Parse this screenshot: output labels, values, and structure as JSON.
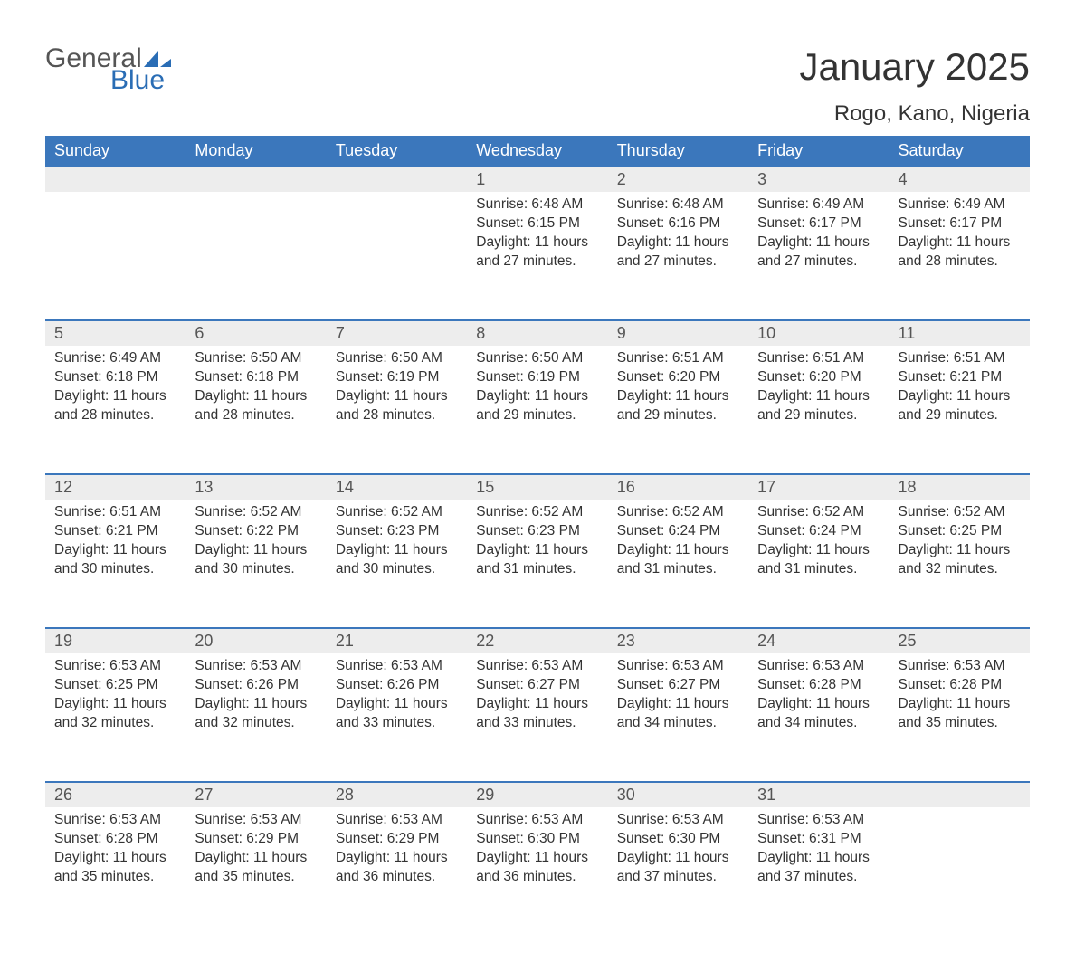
{
  "branding": {
    "logo_word1": "General",
    "logo_word2": "Blue",
    "brand_primary_color": "#2a6db5",
    "brand_text_color": "#555555"
  },
  "header": {
    "month_title": "January 2025",
    "location": "Rogo, Kano, Nigeria"
  },
  "calendar": {
    "header_bg_color": "#3b77bc",
    "header_text_color": "#ffffff",
    "daynum_bg_color": "#ededed",
    "daynum_text_color": "#555555",
    "row_divider_color": "#3b77bc",
    "body_text_color": "#333333",
    "background_color": "#ffffff",
    "font_size_header_pt": 14,
    "font_size_daynum_pt": 14,
    "font_size_body_pt": 12,
    "columns": [
      "Sunday",
      "Monday",
      "Tuesday",
      "Wednesday",
      "Thursday",
      "Friday",
      "Saturday"
    ],
    "weeks": [
      {
        "days": [
          null,
          null,
          null,
          {
            "n": "1",
            "sunrise": "6:48 AM",
            "sunset": "6:15 PM",
            "daylight": "11 hours and 27 minutes."
          },
          {
            "n": "2",
            "sunrise": "6:48 AM",
            "sunset": "6:16 PM",
            "daylight": "11 hours and 27 minutes."
          },
          {
            "n": "3",
            "sunrise": "6:49 AM",
            "sunset": "6:17 PM",
            "daylight": "11 hours and 27 minutes."
          },
          {
            "n": "4",
            "sunrise": "6:49 AM",
            "sunset": "6:17 PM",
            "daylight": "11 hours and 28 minutes."
          }
        ]
      },
      {
        "days": [
          {
            "n": "5",
            "sunrise": "6:49 AM",
            "sunset": "6:18 PM",
            "daylight": "11 hours and 28 minutes."
          },
          {
            "n": "6",
            "sunrise": "6:50 AM",
            "sunset": "6:18 PM",
            "daylight": "11 hours and 28 minutes."
          },
          {
            "n": "7",
            "sunrise": "6:50 AM",
            "sunset": "6:19 PM",
            "daylight": "11 hours and 28 minutes."
          },
          {
            "n": "8",
            "sunrise": "6:50 AM",
            "sunset": "6:19 PM",
            "daylight": "11 hours and 29 minutes."
          },
          {
            "n": "9",
            "sunrise": "6:51 AM",
            "sunset": "6:20 PM",
            "daylight": "11 hours and 29 minutes."
          },
          {
            "n": "10",
            "sunrise": "6:51 AM",
            "sunset": "6:20 PM",
            "daylight": "11 hours and 29 minutes."
          },
          {
            "n": "11",
            "sunrise": "6:51 AM",
            "sunset": "6:21 PM",
            "daylight": "11 hours and 29 minutes."
          }
        ]
      },
      {
        "days": [
          {
            "n": "12",
            "sunrise": "6:51 AM",
            "sunset": "6:21 PM",
            "daylight": "11 hours and 30 minutes."
          },
          {
            "n": "13",
            "sunrise": "6:52 AM",
            "sunset": "6:22 PM",
            "daylight": "11 hours and 30 minutes."
          },
          {
            "n": "14",
            "sunrise": "6:52 AM",
            "sunset": "6:23 PM",
            "daylight": "11 hours and 30 minutes."
          },
          {
            "n": "15",
            "sunrise": "6:52 AM",
            "sunset": "6:23 PM",
            "daylight": "11 hours and 31 minutes."
          },
          {
            "n": "16",
            "sunrise": "6:52 AM",
            "sunset": "6:24 PM",
            "daylight": "11 hours and 31 minutes."
          },
          {
            "n": "17",
            "sunrise": "6:52 AM",
            "sunset": "6:24 PM",
            "daylight": "11 hours and 31 minutes."
          },
          {
            "n": "18",
            "sunrise": "6:52 AM",
            "sunset": "6:25 PM",
            "daylight": "11 hours and 32 minutes."
          }
        ]
      },
      {
        "days": [
          {
            "n": "19",
            "sunrise": "6:53 AM",
            "sunset": "6:25 PM",
            "daylight": "11 hours and 32 minutes."
          },
          {
            "n": "20",
            "sunrise": "6:53 AM",
            "sunset": "6:26 PM",
            "daylight": "11 hours and 32 minutes."
          },
          {
            "n": "21",
            "sunrise": "6:53 AM",
            "sunset": "6:26 PM",
            "daylight": "11 hours and 33 minutes."
          },
          {
            "n": "22",
            "sunrise": "6:53 AM",
            "sunset": "6:27 PM",
            "daylight": "11 hours and 33 minutes."
          },
          {
            "n": "23",
            "sunrise": "6:53 AM",
            "sunset": "6:27 PM",
            "daylight": "11 hours and 34 minutes."
          },
          {
            "n": "24",
            "sunrise": "6:53 AM",
            "sunset": "6:28 PM",
            "daylight": "11 hours and 34 minutes."
          },
          {
            "n": "25",
            "sunrise": "6:53 AM",
            "sunset": "6:28 PM",
            "daylight": "11 hours and 35 minutes."
          }
        ]
      },
      {
        "days": [
          {
            "n": "26",
            "sunrise": "6:53 AM",
            "sunset": "6:28 PM",
            "daylight": "11 hours and 35 minutes."
          },
          {
            "n": "27",
            "sunrise": "6:53 AM",
            "sunset": "6:29 PM",
            "daylight": "11 hours and 35 minutes."
          },
          {
            "n": "28",
            "sunrise": "6:53 AM",
            "sunset": "6:29 PM",
            "daylight": "11 hours and 36 minutes."
          },
          {
            "n": "29",
            "sunrise": "6:53 AM",
            "sunset": "6:30 PM",
            "daylight": "11 hours and 36 minutes."
          },
          {
            "n": "30",
            "sunrise": "6:53 AM",
            "sunset": "6:30 PM",
            "daylight": "11 hours and 37 minutes."
          },
          {
            "n": "31",
            "sunrise": "6:53 AM",
            "sunset": "6:31 PM",
            "daylight": "11 hours and 37 minutes."
          },
          null
        ]
      }
    ],
    "labels": {
      "sunrise": "Sunrise:",
      "sunset": "Sunset:",
      "daylight": "Daylight:"
    }
  }
}
